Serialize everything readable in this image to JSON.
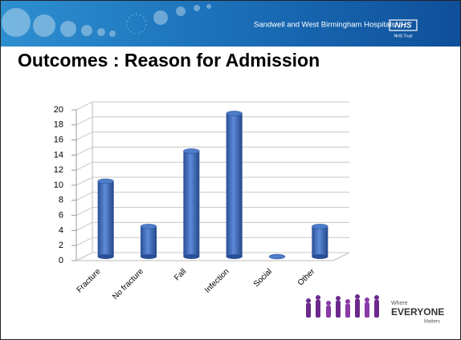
{
  "header": {
    "organisation": "Sandwell and West Birmingham Hospitals",
    "badge": "NHS",
    "trust": "NHS Trust"
  },
  "logo": {
    "line1": "Where",
    "line2": "EVERYONE",
    "line3": "Matters"
  },
  "chart_data": {
    "type": "bar",
    "title": "Outcomes : Reason for Admission",
    "categories": [
      "Fracture",
      "No fracture",
      "Fall",
      "Infection",
      "Social",
      "Other"
    ],
    "values": [
      10,
      4,
      14,
      19,
      0,
      4
    ],
    "color": "#3a6bbf",
    "ylim": [
      0,
      20
    ],
    "yticks": [
      0,
      2,
      4,
      6,
      8,
      10,
      12,
      14,
      16,
      18,
      20
    ],
    "grid": true
  }
}
